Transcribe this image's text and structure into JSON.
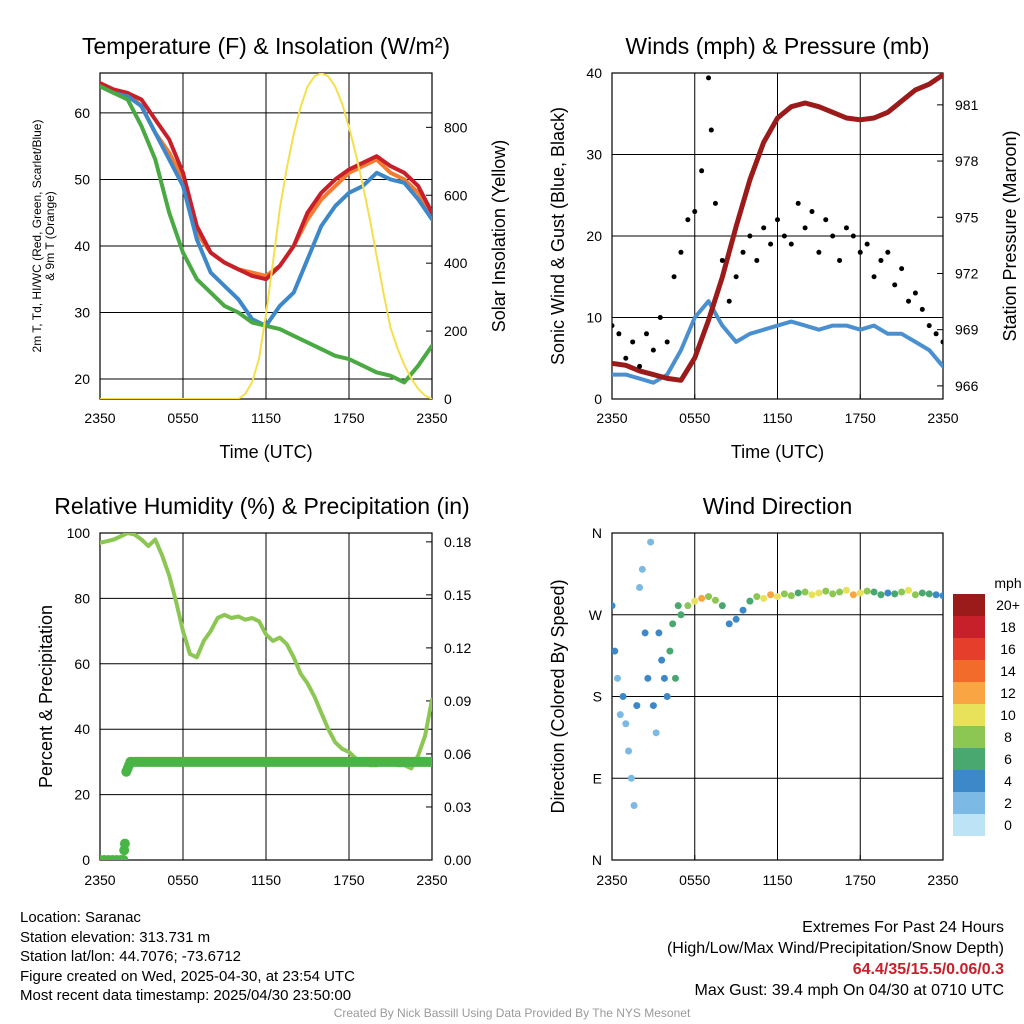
{
  "colors": {
    "t2m": "#c8202a",
    "td": "#49a942",
    "hiwc": "#3d88c8",
    "t9m": "#f47a30",
    "solar": "#f5df4d",
    "wind": "#4a90d0",
    "gust": "#000000",
    "pressure": "#9b1b1b",
    "rh": "#8cc653",
    "precip": "#49b546"
  },
  "times": [
    "2350",
    "0550",
    "1150",
    "1750",
    "2350"
  ],
  "chart_data": [
    {
      "id": "temperature",
      "type": "line",
      "title": "Temperature (F) & Insolation (W/m²)",
      "xlabel": "Time (UTC)",
      "ylabel": "2m T, T_d, HI/WC (Red, Green, Scarlet/Blue) & 9m T (Orange)",
      "ylabel_line1": "2m T, Td, HI/WC (Red, Green, Scarlet/Blue)",
      "ylabel_line2": "& 9m T (Orange)",
      "y2label": "Solar Insolation (Yellow)",
      "xlim": [
        0,
        24
      ],
      "ylim": [
        17,
        66
      ],
      "y2lim": [
        0,
        960
      ],
      "yticks": [
        20,
        30,
        40,
        50,
        60
      ],
      "y2ticks": [
        0,
        200,
        400,
        600,
        800
      ],
      "series": [
        {
          "name": "9m T",
          "color_key": "t9m",
          "x": [
            0,
            1,
            2,
            3,
            4,
            5,
            6,
            7,
            8,
            9,
            10,
            11,
            12,
            13,
            14,
            15,
            16,
            17,
            18,
            19,
            20,
            21,
            22,
            23,
            24
          ],
          "y": [
            64,
            63.5,
            63,
            61,
            57,
            54,
            50,
            42,
            39,
            37.5,
            36.5,
            36,
            35.5,
            37,
            40,
            44,
            47,
            49,
            51,
            52,
            53,
            51,
            50,
            48,
            45
          ]
        },
        {
          "name": "2m T",
          "color_key": "t2m",
          "x": [
            0,
            1,
            2,
            3,
            4,
            5,
            6,
            7,
            8,
            9,
            10,
            11,
            12,
            13,
            14,
            15,
            16,
            17,
            18,
            19,
            20,
            21,
            22,
            23,
            24
          ],
          "y": [
            64.5,
            63.5,
            63,
            62,
            59,
            56,
            51,
            43,
            39,
            37.5,
            36.5,
            35.5,
            35,
            37,
            40,
            45,
            48,
            50,
            51.5,
            52.5,
            53.5,
            52,
            51,
            49,
            45
          ]
        },
        {
          "name": "HI/WC",
          "color_key": "hiwc",
          "x": [
            0,
            1,
            2,
            3,
            4,
            5,
            6,
            7,
            8,
            9,
            10,
            11,
            12,
            13,
            14,
            15,
            16,
            17,
            18,
            19,
            20,
            21,
            22,
            23,
            24
          ],
          "y": [
            64,
            63,
            62.5,
            61,
            57,
            53,
            49,
            41,
            36,
            34,
            32,
            29,
            28,
            31,
            33,
            38,
            43,
            46,
            48,
            49,
            51,
            50,
            49.5,
            47,
            44
          ]
        },
        {
          "name": "Td",
          "color_key": "td",
          "x": [
            0,
            1,
            2,
            3,
            4,
            5,
            6,
            7,
            8,
            9,
            10,
            11,
            12,
            13,
            14,
            15,
            16,
            17,
            18,
            19,
            20,
            21,
            22,
            23,
            24
          ],
          "y": [
            64,
            63,
            62,
            58,
            53,
            45,
            39,
            35,
            33,
            31,
            30,
            28.5,
            28,
            27.5,
            26.5,
            25.5,
            24.5,
            23.5,
            23,
            22,
            21,
            20.5,
            19.5,
            22,
            25
          ]
        },
        {
          "name": "Solar",
          "color_key": "solar",
          "axis": "y2",
          "x": [
            0,
            1,
            2,
            3,
            4,
            5,
            6,
            7,
            8,
            8.5,
            9,
            9.5,
            10,
            10.5,
            11,
            11.5,
            12,
            12.5,
            13,
            13.5,
            14,
            14.5,
            15,
            15.5,
            16,
            16.5,
            17,
            17.5,
            18,
            18.5,
            19,
            19.5,
            20,
            20.5,
            21,
            21.5,
            22,
            22.5,
            23,
            23.5,
            24
          ],
          "y": [
            0,
            0,
            0,
            0,
            0,
            0,
            0,
            0,
            0,
            0,
            0,
            0,
            0,
            15,
            50,
            120,
            250,
            400,
            560,
            680,
            780,
            860,
            920,
            950,
            960,
            950,
            920,
            870,
            800,
            720,
            630,
            530,
            420,
            310,
            210,
            150,
            100,
            60,
            30,
            10,
            0
          ]
        }
      ]
    },
    {
      "id": "winds",
      "type": "line",
      "title": "Winds (mph) & Pressure (mb)",
      "xlabel": "Time (UTC)",
      "ylabel": "Sonic Wind & Gust (Blue, Black)",
      "y2label": "Station Pressure (Maroon)",
      "xlim": [
        0,
        24
      ],
      "ylim": [
        0,
        40
      ],
      "y2lim": [
        965.3,
        982.7
      ],
      "yticks": [
        0,
        10,
        20,
        30,
        40
      ],
      "y2ticks": [
        966,
        969,
        972,
        975,
        978,
        981
      ],
      "series": [
        {
          "name": "Sonic Wind",
          "color_key": "wind",
          "x": [
            0,
            1,
            2,
            3,
            4,
            5,
            6,
            7,
            8,
            9,
            10,
            11,
            12,
            13,
            14,
            15,
            16,
            17,
            18,
            19,
            20,
            21,
            22,
            23,
            24
          ],
          "y": [
            3,
            3,
            2.5,
            2,
            3,
            6,
            10,
            12,
            9,
            7,
            8,
            8.5,
            9,
            9.5,
            9,
            8.5,
            9,
            9,
            8.5,
            9,
            8,
            8,
            7,
            6,
            4
          ]
        },
        {
          "name": "Pressure",
          "color_key": "pressure",
          "axis": "y2",
          "x": [
            0,
            1,
            2,
            3,
            4,
            5,
            6,
            7,
            8,
            9,
            10,
            11,
            12,
            13,
            14,
            15,
            16,
            17,
            18,
            19,
            20,
            21,
            22,
            23,
            24
          ],
          "y": [
            967.2,
            967.1,
            966.8,
            966.6,
            966.4,
            966.3,
            967.5,
            969.5,
            971.8,
            974.5,
            977,
            979,
            980.3,
            980.9,
            981.1,
            980.9,
            980.6,
            980.3,
            980.2,
            980.3,
            980.6,
            981.2,
            981.8,
            982.1,
            982.6
          ]
        },
        {
          "name": "Gust",
          "color_key": "gust",
          "mode": "points",
          "x": [
            0,
            0.5,
            1,
            1.5,
            2,
            2.5,
            3,
            3.5,
            4,
            4.5,
            5,
            5.5,
            6,
            6.5,
            7,
            7.2,
            7.5,
            8,
            8.5,
            9,
            9.5,
            10,
            10.5,
            11,
            11.5,
            12,
            12.5,
            13,
            13.5,
            14,
            14.5,
            15,
            15.5,
            16,
            16.5,
            17,
            17.5,
            18,
            18.5,
            19,
            19.5,
            20,
            20.5,
            21,
            21.5,
            22,
            22.5,
            23,
            23.5,
            24
          ],
          "y": [
            9,
            8,
            5,
            7,
            4,
            8,
            6,
            10,
            7,
            15,
            18,
            22,
            23,
            28,
            39.4,
            33,
            24,
            17,
            12,
            15,
            18,
            20,
            17,
            21,
            19,
            22,
            20,
            19,
            24,
            21,
            23,
            18,
            22,
            20,
            17,
            21,
            20,
            18,
            19,
            15,
            17,
            18,
            14,
            16,
            12,
            13,
            11,
            9,
            8,
            7
          ]
        }
      ]
    },
    {
      "id": "humidity",
      "type": "line",
      "title": "Relative Humidity (%) & Precipitation (in)",
      "xlabel": "",
      "ylabel": "Percent & Precipitation",
      "xlim": [
        0,
        24
      ],
      "ylim": [
        0,
        100
      ],
      "y2lim": [
        0,
        0.185
      ],
      "yticks": [
        0,
        20,
        40,
        60,
        80,
        100
      ],
      "y2ticks": [
        "0.00",
        "0.03",
        "0.06",
        "0.09",
        "0.12",
        "0.15",
        "0.18"
      ],
      "series": [
        {
          "name": "RH",
          "color_key": "rh",
          "x": [
            0,
            0.5,
            1,
            1.5,
            2,
            2.5,
            3,
            3.5,
            4,
            4.5,
            5,
            5.5,
            6,
            6.5,
            7,
            7.5,
            8,
            8.5,
            9,
            9.5,
            10,
            10.5,
            11,
            11.5,
            12,
            12.5,
            13,
            13.5,
            14,
            14.5,
            15,
            15.5,
            16,
            16.5,
            17,
            17.5,
            18,
            18.5,
            19,
            19.5,
            20,
            20.5,
            21,
            21.5,
            22,
            22.5,
            23,
            23.5,
            24
          ],
          "y": [
            97,
            97.5,
            98,
            99,
            100,
            99.5,
            98,
            96,
            98,
            93,
            87,
            79,
            70,
            63,
            62,
            67,
            70,
            74,
            75,
            74,
            74.5,
            73.5,
            74,
            73,
            69,
            67,
            68,
            66,
            62,
            57,
            54,
            50,
            45,
            40,
            36,
            34,
            33,
            31,
            30,
            29,
            29,
            30,
            30,
            29,
            29,
            28,
            32,
            38,
            49
          ]
        },
        {
          "name": "Precip",
          "color_key": "precip",
          "mode": "points",
          "x": [
            0,
            0.3,
            0.6,
            0.9,
            1.2,
            1.5,
            1.7,
            1.75,
            1.8,
            1.9,
            2.0,
            2.1,
            2.2
          ],
          "y": [
            0,
            0,
            0,
            0,
            0,
            0,
            0,
            3,
            5,
            27,
            28,
            29,
            30
          ]
        }
      ]
    },
    {
      "id": "direction",
      "type": "scatter",
      "title": "Wind Direction",
      "ylabel": "Direction (Colored By Speed)",
      "xlim": [
        0,
        24
      ],
      "ylim": [
        0,
        360
      ],
      "yticks": [
        "N",
        "E",
        "S",
        "W",
        "N"
      ],
      "legend": {
        "title": "mph",
        "labels": [
          "20+",
          "18",
          "16",
          "14",
          "12",
          "10",
          "8",
          "6",
          "4",
          "2",
          "0"
        ],
        "colors": [
          "#9b1b1b",
          "#c8202a",
          "#e53e2b",
          "#f26b2a",
          "#f9a544",
          "#e8e15a",
          "#8cc653",
          "#49a770",
          "#3d88c8",
          "#7cb9e4",
          "#bce3f6"
        ]
      },
      "points": {
        "x": [
          0,
          0.2,
          0.4,
          0.6,
          0.8,
          1.0,
          1.2,
          1.4,
          1.6,
          1.8,
          2.0,
          2.2,
          2.4,
          2.6,
          2.8,
          3.0,
          3.2,
          3.4,
          3.6,
          3.8,
          4.0,
          4.2,
          4.4,
          4.6,
          4.8,
          5.0,
          5.5,
          6.0,
          6.5,
          7.0,
          7.5,
          8.0,
          8.5,
          9.0,
          9.5,
          10.0,
          10.5,
          11.0,
          11.5,
          12.0,
          12.5,
          13.0,
          13.5,
          14.0,
          14.5,
          15.0,
          15.5,
          16.0,
          16.5,
          17.0,
          17.5,
          18.0,
          18.5,
          19.0,
          19.5,
          20.0,
          20.5,
          21.0,
          21.5,
          22.0,
          22.5,
          23.0,
          23.5,
          24.0
        ],
        "y": [
          280,
          230,
          200,
          160,
          180,
          150,
          120,
          90,
          60,
          170,
          300,
          320,
          250,
          200,
          350,
          170,
          140,
          250,
          220,
          200,
          180,
          230,
          260,
          200,
          280,
          270,
          280,
          285,
          288,
          290,
          286,
          280,
          260,
          265,
          275,
          285,
          290,
          288,
          292,
          290,
          293,
          291,
          294,
          295,
          292,
          294,
          296,
          293,
          295,
          297,
          292,
          294,
          296,
          295,
          292,
          294,
          293,
          295,
          297,
          292,
          294,
          293,
          292,
          291
        ],
        "speeds": [
          3,
          3,
          2,
          2,
          3,
          1,
          2,
          2,
          1,
          3,
          2,
          2,
          3,
          3,
          2,
          3,
          2,
          4,
          4,
          4,
          3,
          5,
          5,
          6,
          6,
          6,
          7,
          10,
          12,
          8,
          7,
          6,
          4,
          3,
          4,
          6,
          8,
          10,
          12,
          9,
          8,
          7,
          6,
          8,
          10,
          9,
          8,
          7,
          8,
          10,
          12,
          9,
          8,
          6,
          5,
          4,
          6,
          8,
          9,
          7,
          6,
          5,
          4,
          4
        ]
      }
    }
  ],
  "info": {
    "location": "Location: Saranac",
    "elevation": "Station elevation: 313.731 m",
    "latlon": "Station lat/lon: 44.7076; -73.6712",
    "created": "Figure created on Wed, 2025-04-30, at 23:54 UTC",
    "recent": "Most recent data timestamp: 2025/04/30 23:50:00"
  },
  "extremes": {
    "heading": "Extremes For Past 24 Hours",
    "subheading": "(High/Low/Max Wind/Precipitation/Snow Depth)",
    "values": "64.4/35/15.5/0.06/0.3",
    "gust": "Max Gust: 39.4 mph On 04/30 at 0710 UTC"
  },
  "credit": "Created By Nick Bassill Using Data Provided By The NYS Mesonet"
}
